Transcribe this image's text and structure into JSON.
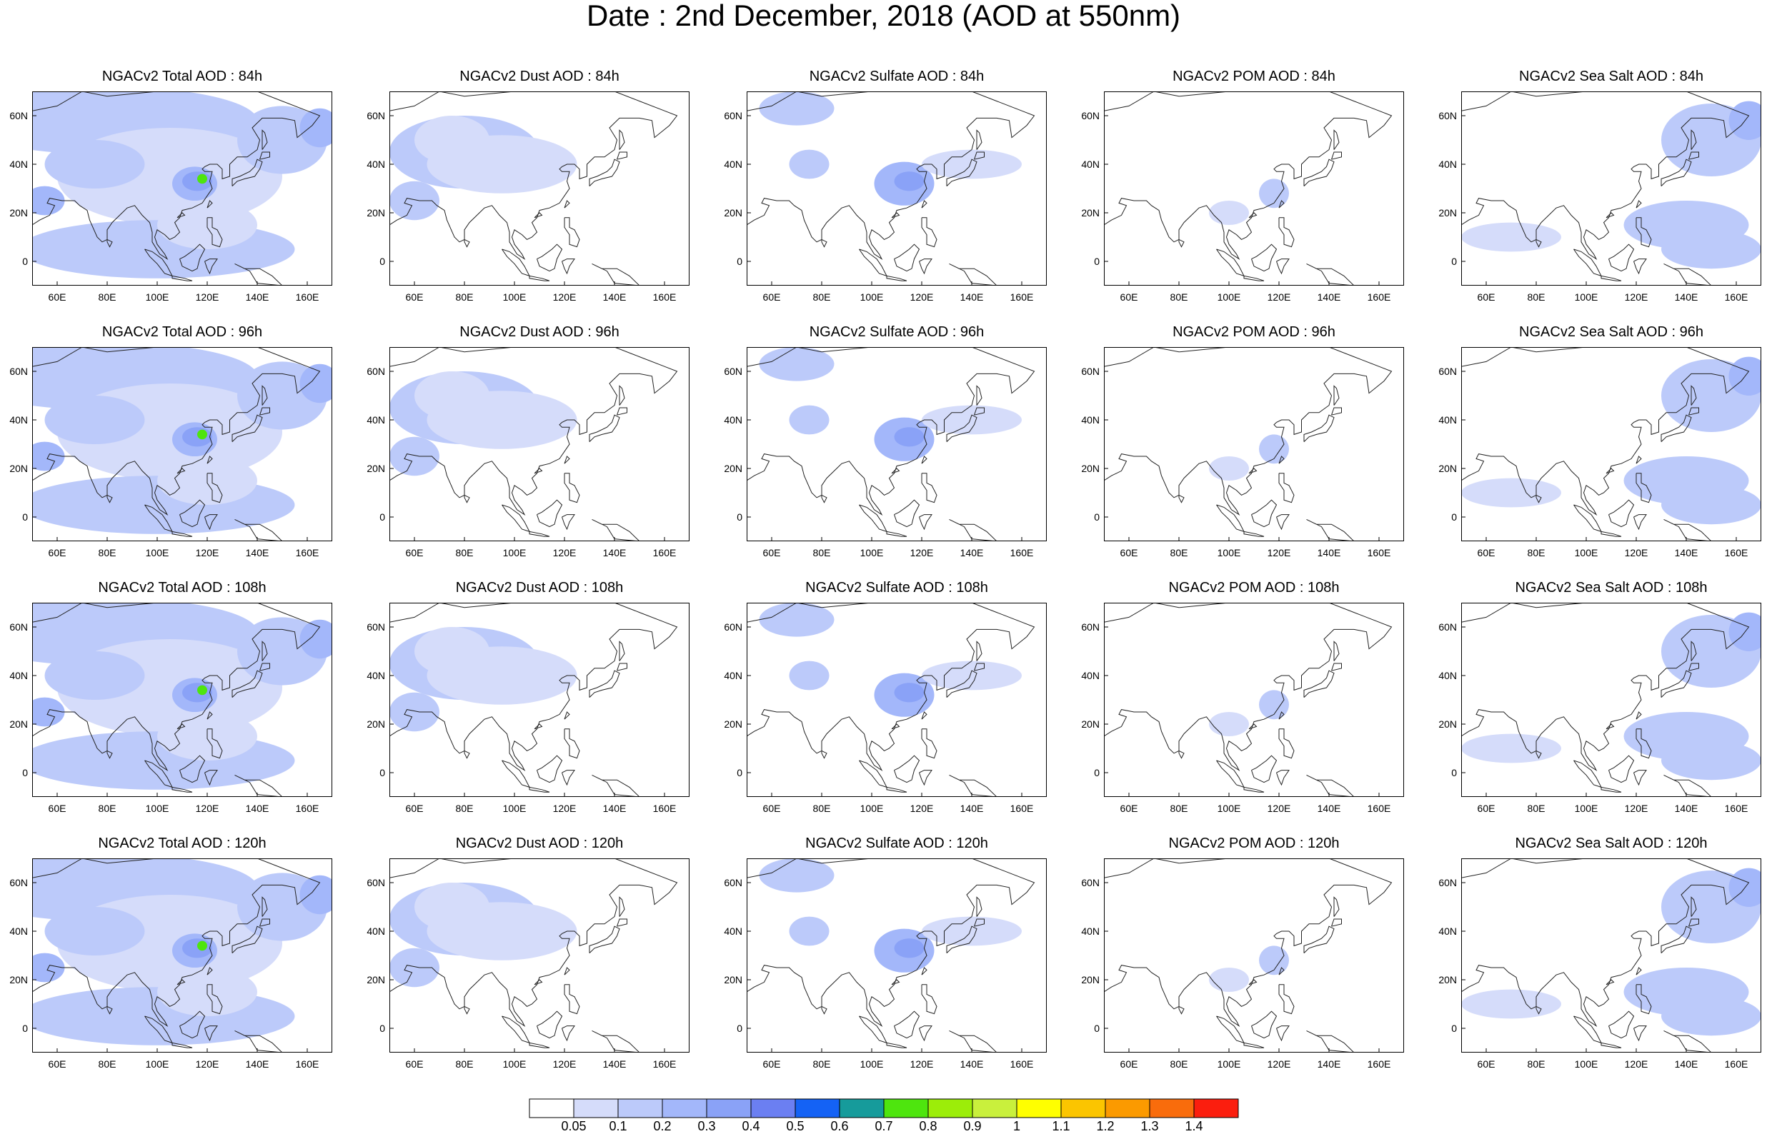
{
  "title": "Date : 2nd December, 2018 (AOD at 550nm)",
  "colors": {
    "coastline": "#222222",
    "frame": "#000000"
  },
  "axes": {
    "lon_ticks": [
      "60E",
      "80E",
      "100E",
      "120E",
      "140E",
      "160E"
    ],
    "lat_ticks": [
      "60N",
      "40N",
      "20N",
      "0"
    ],
    "lon_values": [
      60,
      80,
      100,
      120,
      140,
      160
    ],
    "lat_values": [
      60,
      40,
      20,
      0
    ],
    "lon_range": [
      50,
      170
    ],
    "lat_range": [
      -10,
      70
    ]
  },
  "panels": [
    {
      "title": "NGACv2 Total AOD : 84h",
      "species": "total",
      "lead_hours": 84
    },
    {
      "title": "NGACv2 Dust AOD : 84h",
      "species": "dust",
      "lead_hours": 84
    },
    {
      "title": "NGACv2 Sulfate AOD : 84h",
      "species": "sulfate",
      "lead_hours": 84
    },
    {
      "title": "NGACv2 POM AOD : 84h",
      "species": "pom",
      "lead_hours": 84
    },
    {
      "title": "NGACv2 Sea Salt AOD : 84h",
      "species": "seasalt",
      "lead_hours": 84
    },
    {
      "title": "NGACv2 Total AOD : 96h",
      "species": "total",
      "lead_hours": 96
    },
    {
      "title": "NGACv2 Dust AOD : 96h",
      "species": "dust",
      "lead_hours": 96
    },
    {
      "title": "NGACv2 Sulfate AOD : 96h",
      "species": "sulfate",
      "lead_hours": 96
    },
    {
      "title": "NGACv2 POM AOD : 96h",
      "species": "pom",
      "lead_hours": 96
    },
    {
      "title": "NGACv2 Sea Salt AOD : 96h",
      "species": "seasalt",
      "lead_hours": 96
    },
    {
      "title": "NGACv2 Total AOD : 108h",
      "species": "total",
      "lead_hours": 108
    },
    {
      "title": "NGACv2 Dust AOD : 108h",
      "species": "dust",
      "lead_hours": 108
    },
    {
      "title": "NGACv2 Sulfate AOD : 108h",
      "species": "sulfate",
      "lead_hours": 108
    },
    {
      "title": "NGACv2 POM AOD : 108h",
      "species": "pom",
      "lead_hours": 108
    },
    {
      "title": "NGACv2 Sea Salt AOD : 108h",
      "species": "seasalt",
      "lead_hours": 108
    },
    {
      "title": "NGACv2 Total AOD : 120h",
      "species": "total",
      "lead_hours": 120
    },
    {
      "title": "NGACv2 Dust AOD : 120h",
      "species": "dust",
      "lead_hours": 120
    },
    {
      "title": "NGACv2 Sulfate AOD : 120h",
      "species": "sulfate",
      "lead_hours": 120
    },
    {
      "title": "NGACv2 POM AOD : 120h",
      "species": "pom",
      "lead_hours": 120
    },
    {
      "title": "NGACv2 Sea Salt  AOD : 120h",
      "species": "seasalt",
      "lead_hours": 120
    }
  ],
  "colorbar": {
    "labels": [
      "0.05",
      "0.1",
      "0.2",
      "0.3",
      "0.4",
      "0.5",
      "0.6",
      "0.7",
      "0.8",
      "0.9",
      "1",
      "1.1",
      "1.2",
      "1.3",
      "1.4"
    ],
    "colors": [
      "#ffffff",
      "#d5dcfa",
      "#bccafa",
      "#a3b7fa",
      "#8aa2f7",
      "#6b7ff2",
      "#1462f5",
      "#169b9b",
      "#4ee50e",
      "#9ced09",
      "#c9f03c",
      "#ffff00",
      "#fbc500",
      "#fb9a00",
      "#f96c0c",
      "#fb1e0e"
    ]
  }
}
